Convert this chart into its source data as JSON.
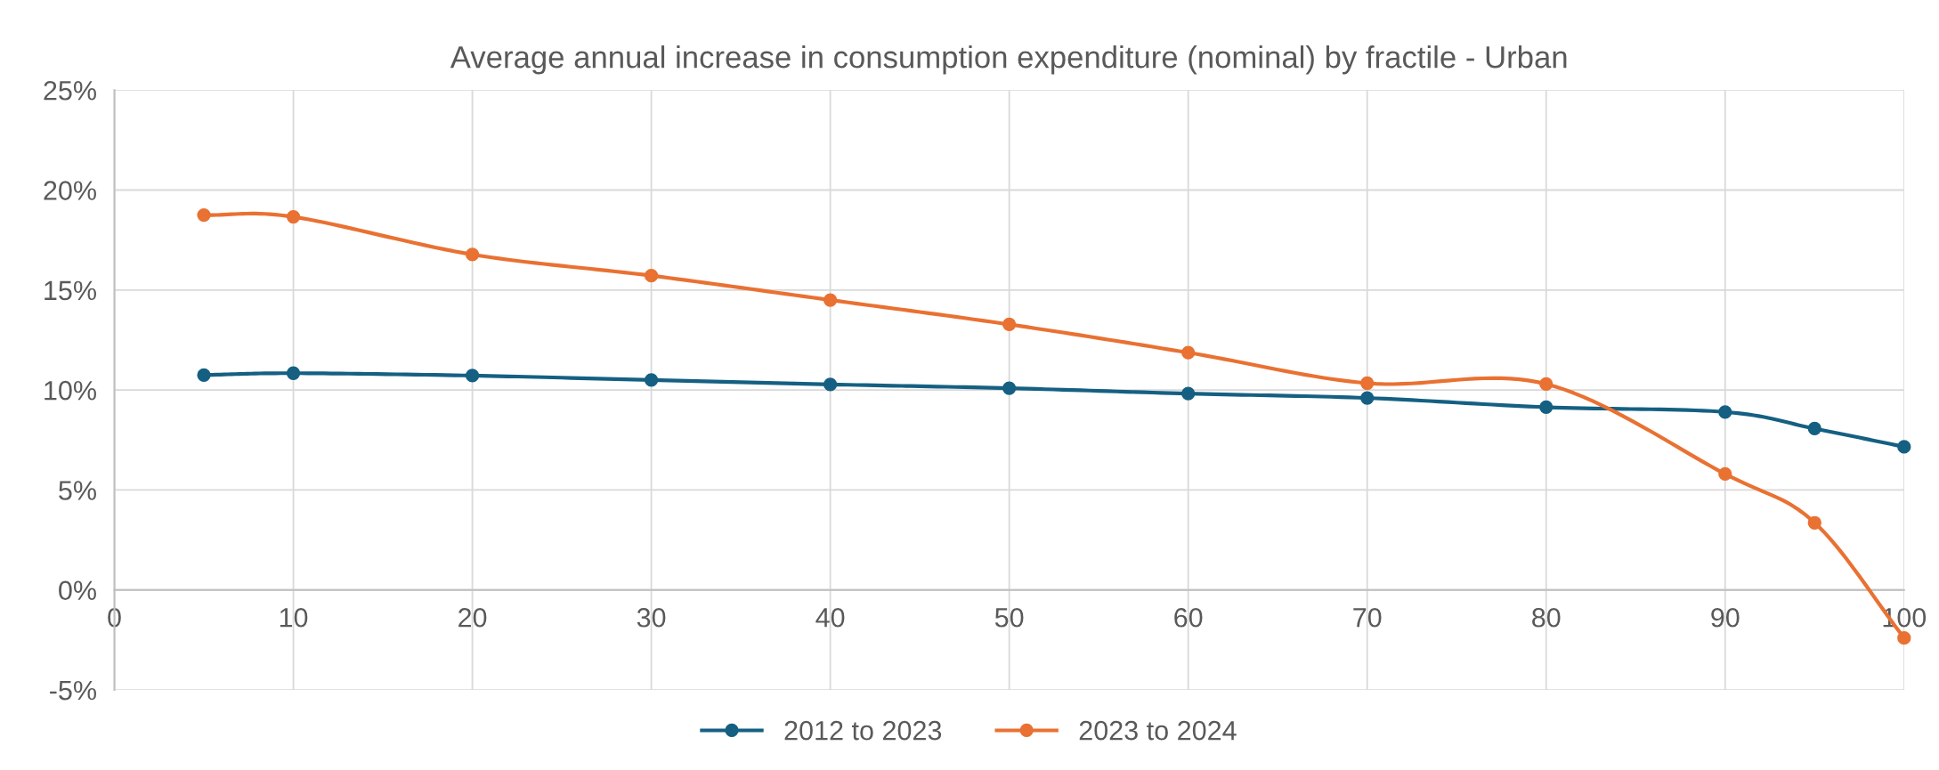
{
  "chart_data": {
    "type": "line",
    "title": "Average annual increase in consumption expenditure (nominal) by fractile - Urban",
    "x": [
      5,
      10,
      20,
      30,
      40,
      50,
      60,
      70,
      80,
      90,
      95,
      100
    ],
    "series": [
      {
        "name": "2012 to 2023",
        "color": "#156082",
        "values": [
          10.75,
          10.84,
          10.72,
          10.5,
          10.28,
          10.09,
          9.82,
          9.6,
          9.14,
          8.9,
          8.07,
          7.16
        ]
      },
      {
        "name": "2023 to 2024",
        "color": "#e97132",
        "values": [
          18.75,
          18.66,
          16.78,
          15.72,
          14.5,
          13.28,
          11.87,
          10.34,
          10.3,
          5.8,
          3.36,
          -2.4
        ]
      }
    ],
    "xlim": [
      0,
      100
    ],
    "xticks": [
      0,
      10,
      20,
      30,
      40,
      50,
      60,
      70,
      80,
      90,
      100
    ],
    "ylim": [
      -5,
      25
    ],
    "yticks": [
      {
        "value": -5,
        "label": "-5%"
      },
      {
        "value": 0,
        "label": "0%"
      },
      {
        "value": 5,
        "label": "5%"
      },
      {
        "value": 10,
        "label": "10%"
      },
      {
        "value": 15,
        "label": "15%"
      },
      {
        "value": 20,
        "label": "20%"
      },
      {
        "value": 25,
        "label": "25%"
      }
    ],
    "grid": true,
    "legend": "bottom",
    "marker": "circle",
    "line_style": "solid"
  }
}
